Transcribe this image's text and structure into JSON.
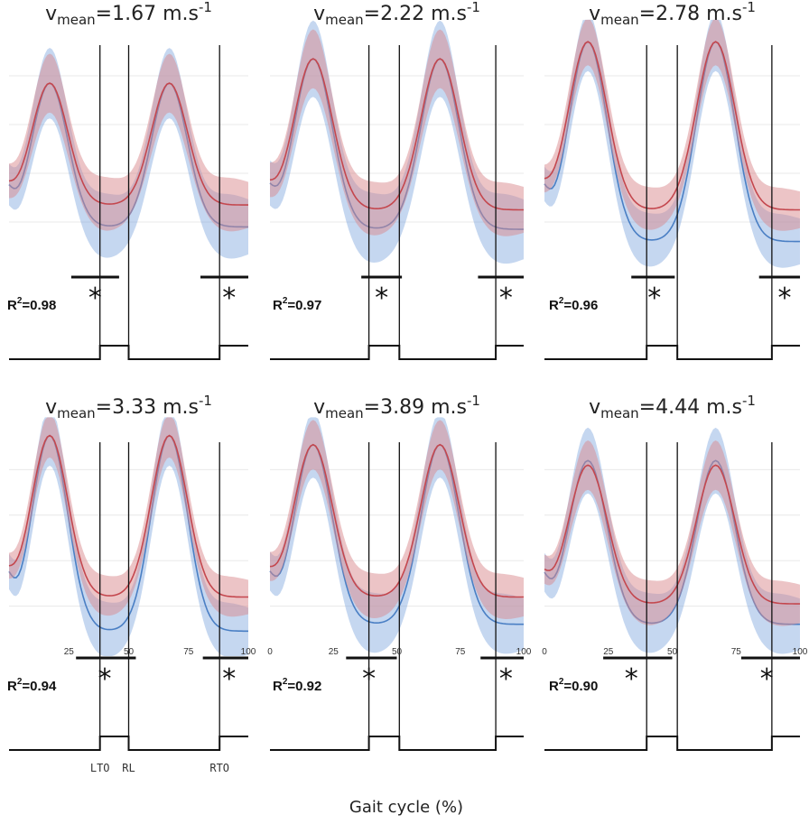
{
  "figure": {
    "xlabel": "Gait cycle (%)",
    "colors": {
      "blue": "#4a7fc4",
      "blue_band": "#7fa7dd",
      "red": "#c4474e",
      "red_band": "#d98a8e",
      "axes": "#111111"
    }
  },
  "chart_data": [
    {
      "type": "line",
      "title": {
        "v": "v",
        "sub": "mean",
        "value": "=1.67 m.s",
        "sup": "-1"
      },
      "r2": {
        "label": "R",
        "sup": "2",
        "value": "=0.98"
      },
      "xlim": [
        0,
        100
      ],
      "xticks": [],
      "series": [
        {
          "color": "blue",
          "peak": 0.77,
          "trough": 0.18,
          "sd": 0.12
        },
        {
          "color": "red",
          "peak": 0.77,
          "trough": 0.27,
          "sd": 0.1
        }
      ],
      "events": {
        "LTO": 38,
        "RL": 50,
        "RTO": 88
      },
      "sig": [
        [
          26,
          46
        ],
        [
          80,
          100
        ]
      ],
      "stars": [
        36,
        92
      ],
      "event_labels": []
    },
    {
      "type": "line",
      "title": {
        "v": "v",
        "sub": "mean",
        "value": "=2.22 m.s",
        "sup": "-1"
      },
      "r2": {
        "label": "R",
        "sup": "2",
        "value": "=0.97"
      },
      "xlim": [
        0,
        100
      ],
      "xticks": [],
      "series": [
        {
          "color": "blue",
          "peak": 0.87,
          "trough": 0.17,
          "sd": 0.13
        },
        {
          "color": "red",
          "peak": 0.87,
          "trough": 0.25,
          "sd": 0.1
        }
      ],
      "events": {
        "LTO": 39,
        "RL": 51,
        "RTO": 89
      },
      "sig": [
        [
          36,
          52
        ],
        [
          82,
          100
        ]
      ],
      "stars": [
        44,
        93
      ],
      "event_labels": []
    },
    {
      "type": "line",
      "title": {
        "v": "v",
        "sub": "mean",
        "value": "=2.78 m.s",
        "sup": "-1"
      },
      "r2": {
        "label": "R",
        "sup": "2",
        "value": "=0.96"
      },
      "xlim": [
        0,
        100
      ],
      "xticks": [],
      "series": [
        {
          "color": "blue",
          "peak": 0.94,
          "trough": 0.12,
          "sd": 0.1
        },
        {
          "color": "red",
          "peak": 0.94,
          "trough": 0.25,
          "sd": 0.08
        }
      ],
      "events": {
        "LTO": 40,
        "RL": 52,
        "RTO": 89
      },
      "sig": [
        [
          34,
          51
        ],
        [
          84,
          100
        ]
      ],
      "stars": [
        43,
        94
      ],
      "event_labels": []
    },
    {
      "type": "line",
      "title": {
        "v": "v",
        "sub": "mean",
        "value": "=3.33 m.s",
        "sup": "-1"
      },
      "r2": {
        "label": "R",
        "sup": "2",
        "value": "=0.94"
      },
      "xlim": [
        0,
        100
      ],
      "xticks": [
        25,
        50,
        75,
        100
      ],
      "series": [
        {
          "color": "blue",
          "peak": 0.95,
          "trough": 0.09,
          "sd": 0.11
        },
        {
          "color": "red",
          "peak": 0.95,
          "trough": 0.24,
          "sd": 0.08
        }
      ],
      "events": {
        "LTO": 38,
        "RL": 50,
        "RTO": 88
      },
      "sig": [
        [
          28,
          53
        ],
        [
          81,
          100
        ]
      ],
      "stars": [
        40,
        92
      ],
      "event_labels": [
        "LTO",
        "RL",
        "RTO"
      ]
    },
    {
      "type": "line",
      "title": {
        "v": "v",
        "sub": "mean",
        "value": "=3.89 m.s",
        "sup": "-1"
      },
      "r2": {
        "label": "R",
        "sup": "2",
        "value": "=0.92"
      },
      "xlim": [
        0,
        100
      ],
      "xticks": [
        0,
        25,
        50,
        75,
        100
      ],
      "series": [
        {
          "color": "blue",
          "peak": 0.91,
          "trough": 0.12,
          "sd": 0.12
        },
        {
          "color": "red",
          "peak": 0.91,
          "trough": 0.24,
          "sd": 0.09
        }
      ],
      "events": {
        "LTO": 39,
        "RL": 51,
        "RTO": 89
      },
      "sig": [
        [
          30,
          50
        ],
        [
          83,
          100
        ]
      ],
      "stars": [
        39,
        93
      ],
      "event_labels": []
    },
    {
      "type": "line",
      "title": {
        "v": "v",
        "sub": "mean",
        "value": "=4.44 m.s",
        "sup": "-1"
      },
      "r2": {
        "label": "R",
        "sup": "2",
        "value": "=0.90"
      },
      "xlim": [
        0,
        100
      ],
      "xticks": [
        0,
        25,
        50,
        75,
        100
      ],
      "series": [
        {
          "color": "blue",
          "peak": 0.84,
          "trough": 0.12,
          "sd": 0.12
        },
        {
          "color": "red",
          "peak": 0.82,
          "trough": 0.21,
          "sd": 0.09
        }
      ],
      "events": {
        "LTO": 40,
        "RL": 52,
        "RTO": 89
      },
      "sig": [
        [
          23,
          50
        ],
        [
          77,
          100
        ]
      ],
      "stars": [
        34,
        87
      ],
      "event_labels": []
    }
  ]
}
